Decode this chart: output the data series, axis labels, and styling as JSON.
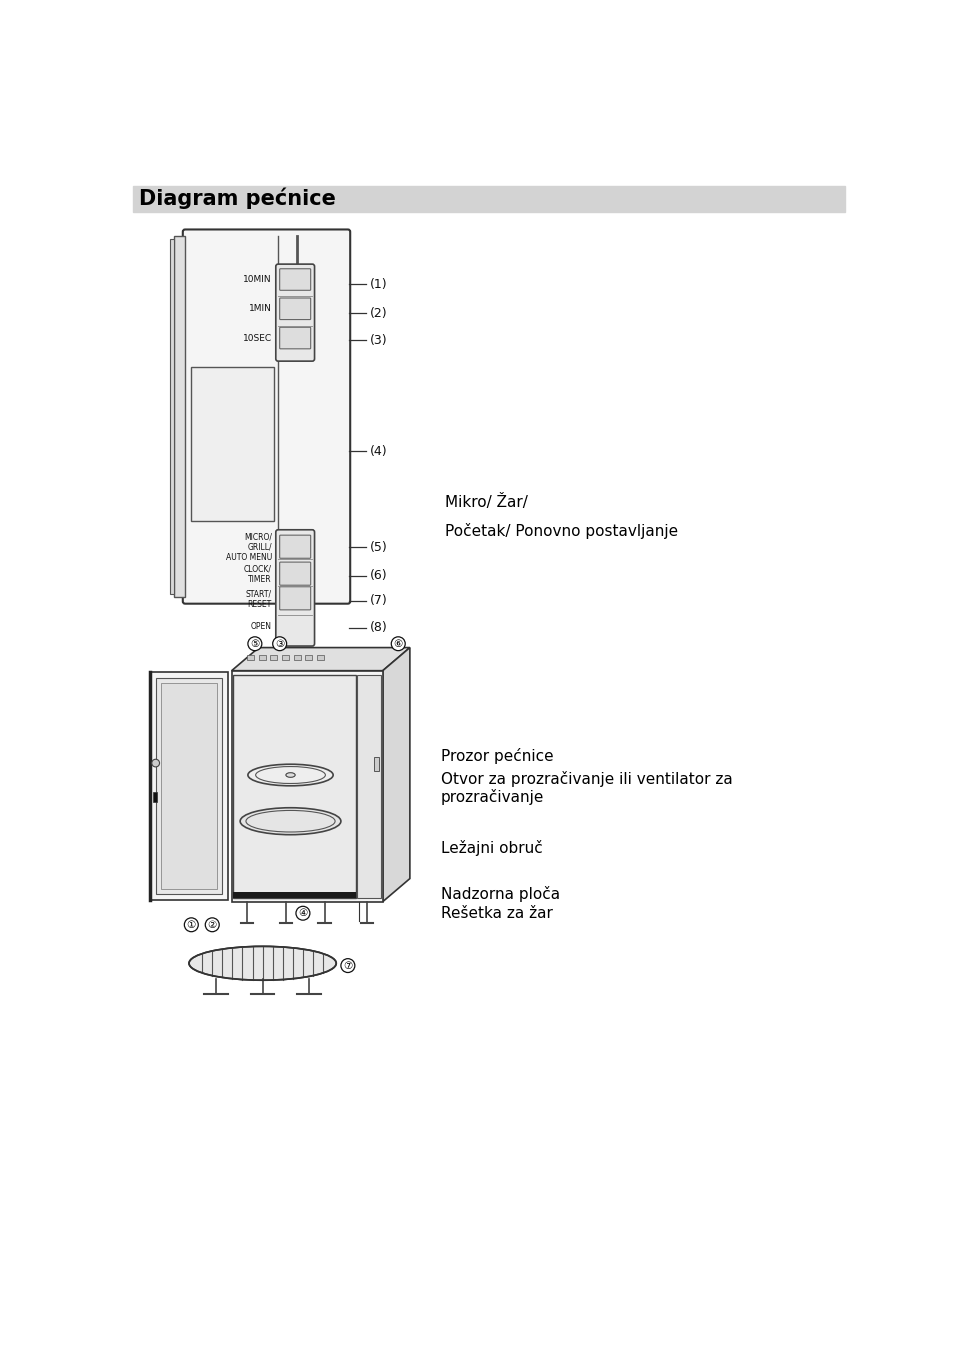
{
  "title": "Diagram pećnice",
  "title_bg": "#d3d3d3",
  "bg_color": "#ffffff",
  "text_color": "#000000",
  "btn1": "10MIN",
  "btn2": "1MIN",
  "btn3": "10SEC",
  "btn5": "MICRO/\nGRILL/\nAUTO MENU",
  "btn6": "CLOCK/\nTIMER",
  "btn7": "START/\nRESET",
  "btn8": "OPEN",
  "right_text1": "Mikro/ Žar/",
  "right_text2": "Početak/ Ponovno postavljanje",
  "bottom_right1": "Prozor pećnice",
  "bottom_right2": "Otvor za prozračivanje ili ventilator za\nprozračivanje",
  "bottom_right3": "Ležajni obruč",
  "bottom_right5": "Nadzorna ploča",
  "bottom_right6": "Rešetka za žar",
  "font_size_title": 15,
  "font_size_body": 11,
  "font_size_small": 7
}
